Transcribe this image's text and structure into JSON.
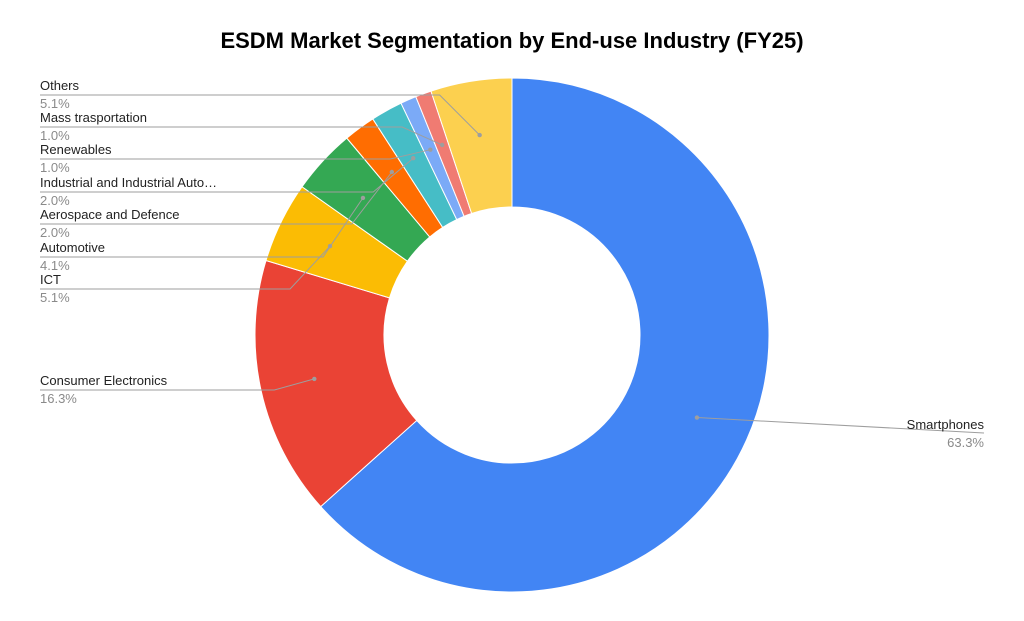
{
  "chart_data": {
    "type": "pie",
    "title": "ESDM Market Segmentation by End-use Industry (FY25)",
    "slices": [
      {
        "label": "Smartphones",
        "value": 63.3,
        "pct_label": "63.3%",
        "color": "#4285F4"
      },
      {
        "label": "Consumer Electronics",
        "value": 16.3,
        "pct_label": "16.3%",
        "color": "#EA4335"
      },
      {
        "label": "ICT",
        "value": 5.1,
        "pct_label": "5.1%",
        "color": "#FBBC04"
      },
      {
        "label": "Automotive",
        "value": 4.1,
        "pct_label": "4.1%",
        "color": "#34A853"
      },
      {
        "label": "Aerospace and Defence",
        "value": 2.0,
        "pct_label": "2.0%",
        "color": "#FF6D01"
      },
      {
        "label": "Industrial and Industrial Auto…",
        "value": 2.0,
        "pct_label": "2.0%",
        "color": "#46BDC6"
      },
      {
        "label": "Renewables",
        "value": 1.0,
        "pct_label": "1.0%",
        "color": "#7BAAF7"
      },
      {
        "label": "Mass trasportation",
        "value": 1.0,
        "pct_label": "1.0%",
        "color": "#F07B72"
      },
      {
        "label": "Others",
        "value": 5.1,
        "pct_label": "5.1%",
        "color": "#FCD04F"
      }
    ],
    "donut": true,
    "legend": "none"
  }
}
